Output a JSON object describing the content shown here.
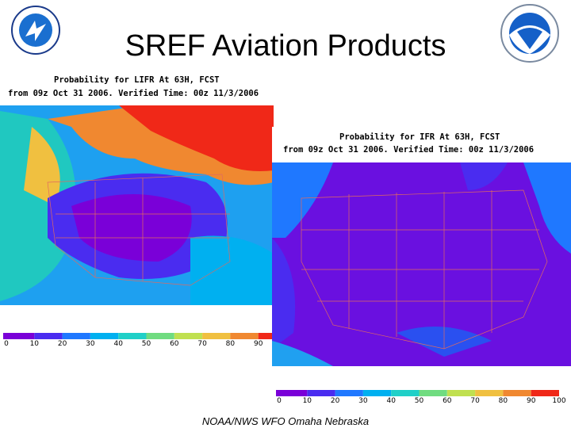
{
  "slide": {
    "title": "SREF Aviation Products",
    "footer": "NOAA/NWS WFO Omaha Nebraska"
  },
  "maps": [
    {
      "title": "Probability for LIFR At 63H, FCST",
      "subtitle": "from 09z Oct 31 2006. Verified Time: 00z 11/3/2006",
      "scale_labels": [
        0,
        10,
        20,
        30,
        40,
        50,
        60,
        70,
        80,
        90
      ],
      "scale_colors": [
        "#7a00d8",
        "#4a2cf0",
        "#1f78ff",
        "#00b0f0",
        "#20d0c8",
        "#70dc80",
        "#c0e050",
        "#f0c040",
        "#f08830",
        "#f02818"
      ]
    },
    {
      "title": "Probability for IFR At 63H, FCST",
      "subtitle": "from 09z Oct 31 2006. Verified Time: 00z 11/3/2006",
      "scale_labels": [
        0,
        10,
        20,
        30,
        40,
        50,
        60,
        70,
        80,
        90,
        100
      ],
      "scale_colors": [
        "#7a00d8",
        "#4a2cf0",
        "#1f78ff",
        "#00b0f0",
        "#20d0c8",
        "#70dc80",
        "#c0e050",
        "#f0c040",
        "#f08830",
        "#f02818"
      ]
    }
  ]
}
